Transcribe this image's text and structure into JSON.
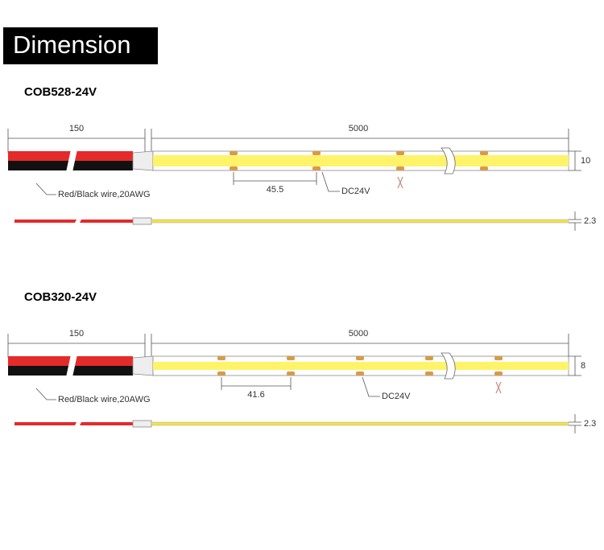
{
  "header": {
    "title": "Dimension"
  },
  "sections": [
    {
      "title": "COB528-24V",
      "wire_length": "150",
      "strip_length": "5000",
      "width": "10",
      "cut_length": "45.5",
      "voltage": "DC24V",
      "wire_note": "Red/Black wire,20AWG",
      "thickness": "2.3"
    },
    {
      "title": "COB320-24V",
      "wire_length": "150",
      "strip_length": "5000",
      "width": "8",
      "cut_length": "41.6",
      "voltage": "DC24V",
      "wire_note": "Red/Black wire,20AWG",
      "thickness": "2.3"
    }
  ]
}
